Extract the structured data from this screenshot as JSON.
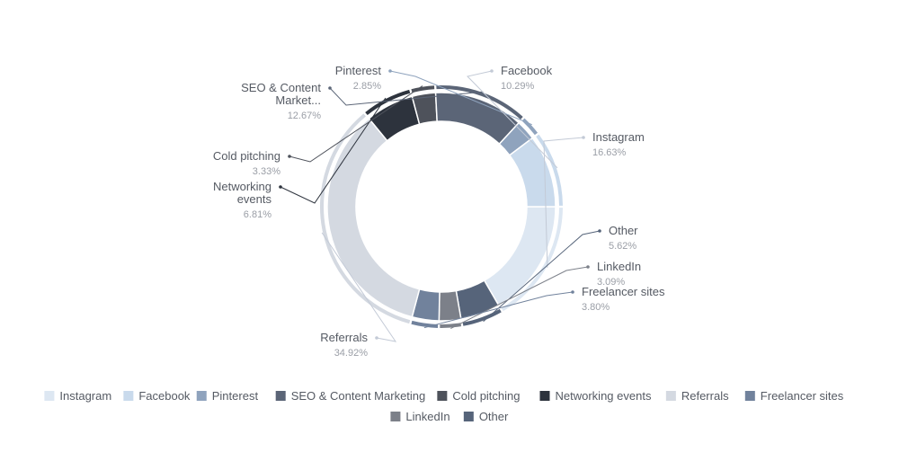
{
  "chart_data": {
    "type": "pie",
    "variant": "donut",
    "title": "",
    "slices": [
      {
        "name": "Instagram",
        "value": 16.63,
        "label": "16.63%",
        "color": "#dde7f2"
      },
      {
        "name": "Other",
        "value": 5.62,
        "label": "5.62%",
        "color": "#56647a"
      },
      {
        "name": "LinkedIn",
        "value": 3.09,
        "label": "3.09%",
        "color": "#7c8089"
      },
      {
        "name": "Freelancer sites",
        "value": 3.8,
        "label": "3.80%",
        "color": "#71829c"
      },
      {
        "name": "Referrals",
        "value": 34.92,
        "label": "34.92%",
        "color": "#d4d9e1"
      },
      {
        "name": "Networking events",
        "value": 6.81,
        "label": "6.81%",
        "color": "#2d333d"
      },
      {
        "name": "Cold pitching",
        "value": 3.33,
        "label": "3.33%",
        "color": "#4e525b"
      },
      {
        "name": "SEO & Content Marketing",
        "value": 12.67,
        "label": "12.67%",
        "display_name": "SEO & Content Market...",
        "color": "#5b6577"
      },
      {
        "name": "Pinterest",
        "value": 2.85,
        "label": "2.85%",
        "color": "#8fa3bd"
      },
      {
        "name": "Facebook",
        "value": 10.29,
        "label": "10.29%",
        "color": "#c9daec"
      }
    ],
    "legend": {
      "placement": "bottom",
      "items": [
        "Instagram",
        "Facebook",
        "Pinterest",
        "SEO & Content Marketing",
        "Cold pitching",
        "Networking events",
        "Referrals",
        "Freelancer sites",
        "LinkedIn",
        "Other"
      ]
    }
  }
}
